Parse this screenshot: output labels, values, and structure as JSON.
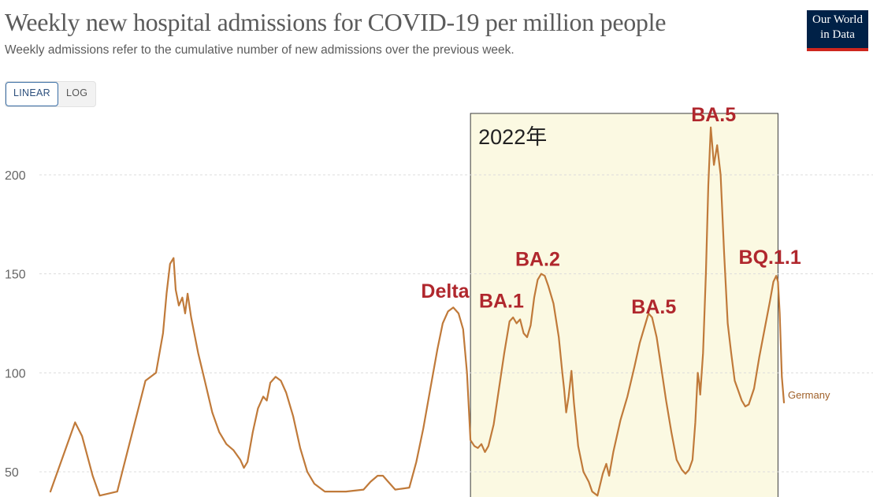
{
  "header": {
    "title": "Weekly new hospital admissions for COVID-19 per million people",
    "subtitle": "Weekly admissions refer to the cumulative number of new admissions over the previous week."
  },
  "logo": {
    "line1": "Our World",
    "line2": "in Data",
    "bg_color": "#002147",
    "accent_color": "#ce261e"
  },
  "controls": {
    "scale_options": [
      "LINEAR",
      "LOG"
    ],
    "selected": "LINEAR"
  },
  "chart_data": {
    "type": "line",
    "title": "Weekly new hospital admissions for COVID-19 per million people",
    "xlabel": "",
    "ylabel": "",
    "y_ticks": [
      50,
      100,
      150,
      200
    ],
    "ylim": [
      40,
      232
    ],
    "grid": "horizontal dashed",
    "line_color": "#c07a3a",
    "series": [
      {
        "name": "Germany",
        "points": [
          [
            0,
            40
          ],
          [
            4,
            60
          ],
          [
            7,
            75
          ],
          [
            9,
            68
          ],
          [
            12,
            48
          ],
          [
            14,
            38
          ],
          [
            19,
            40
          ],
          [
            24,
            75
          ],
          [
            27,
            96
          ],
          [
            30,
            100
          ],
          [
            32,
            120
          ],
          [
            33,
            140
          ],
          [
            34,
            155
          ],
          [
            35,
            158
          ],
          [
            35.6,
            142
          ],
          [
            36.5,
            134
          ],
          [
            37.5,
            138
          ],
          [
            38.3,
            130
          ],
          [
            39,
            140
          ],
          [
            40,
            128
          ],
          [
            42,
            110
          ],
          [
            44,
            95
          ],
          [
            46,
            80
          ],
          [
            48,
            70
          ],
          [
            50,
            64
          ],
          [
            52,
            61
          ],
          [
            54,
            56
          ],
          [
            55,
            52
          ],
          [
            56,
            55
          ],
          [
            57.5,
            70
          ],
          [
            59,
            82
          ],
          [
            60.5,
            88
          ],
          [
            61.5,
            86
          ],
          [
            62.5,
            95
          ],
          [
            64,
            98
          ],
          [
            65.5,
            96
          ],
          [
            67,
            90
          ],
          [
            69,
            78
          ],
          [
            71,
            62
          ],
          [
            73,
            50
          ],
          [
            75,
            44
          ],
          [
            78,
            40
          ],
          [
            84,
            40
          ],
          [
            89,
            41
          ],
          [
            91,
            45
          ],
          [
            93,
            48
          ],
          [
            94.5,
            48
          ],
          [
            96,
            45
          ],
          [
            98,
            41
          ],
          [
            102,
            42
          ],
          [
            104,
            55
          ],
          [
            106,
            72
          ],
          [
            108,
            92
          ],
          [
            110,
            112
          ],
          [
            111.5,
            125
          ],
          [
            113,
            131
          ],
          [
            114.5,
            133
          ],
          [
            116,
            130
          ],
          [
            117.3,
            122
          ],
          [
            118.4,
            100
          ],
          [
            119.4,
            66
          ],
          [
            120.5,
            63
          ],
          [
            121.5,
            62
          ],
          [
            122.5,
            64
          ],
          [
            123.5,
            60
          ],
          [
            124.5,
            63
          ],
          [
            126,
            74
          ],
          [
            127.5,
            92
          ],
          [
            129,
            110
          ],
          [
            130.5,
            126
          ],
          [
            131.5,
            128
          ],
          [
            132.5,
            125
          ],
          [
            133.5,
            127
          ],
          [
            134.5,
            120
          ],
          [
            135.5,
            118
          ],
          [
            136.5,
            124
          ],
          [
            137.5,
            138
          ],
          [
            138.5,
            147
          ],
          [
            139.5,
            150
          ],
          [
            140.5,
            149
          ],
          [
            141.5,
            144
          ],
          [
            143,
            135
          ],
          [
            144.5,
            118
          ],
          [
            145.5,
            100
          ],
          [
            146,
            92
          ],
          [
            146.6,
            80
          ],
          [
            147.3,
            88
          ],
          [
            148.1,
            101
          ],
          [
            148.8,
            85
          ],
          [
            150,
            63
          ],
          [
            151.5,
            50
          ],
          [
            153,
            45
          ],
          [
            154,
            40
          ],
          [
            155.5,
            38
          ],
          [
            157,
            49
          ],
          [
            158,
            54
          ],
          [
            158.8,
            48
          ],
          [
            160,
            60
          ],
          [
            162,
            76
          ],
          [
            164,
            88
          ],
          [
            166,
            103
          ],
          [
            167.5,
            115
          ],
          [
            169,
            124
          ],
          [
            170,
            130
          ],
          [
            171,
            128
          ],
          [
            172.3,
            118
          ],
          [
            173.5,
            104
          ],
          [
            175,
            86
          ],
          [
            176.5,
            70
          ],
          [
            178,
            56
          ],
          [
            179.5,
            51
          ],
          [
            180.5,
            49
          ],
          [
            181.5,
            51
          ],
          [
            182.5,
            56
          ],
          [
            183.3,
            75
          ],
          [
            184,
            100
          ],
          [
            184.4,
            95
          ],
          [
            184.7,
            89
          ],
          [
            185.5,
            110
          ],
          [
            186.3,
            150
          ],
          [
            187,
            195
          ],
          [
            187.7,
            224
          ],
          [
            188.6,
            205
          ],
          [
            189.5,
            215
          ],
          [
            190.5,
            200
          ],
          [
            191.5,
            160
          ],
          [
            192.5,
            125
          ],
          [
            193.5,
            110
          ],
          [
            194.5,
            96
          ],
          [
            195.5,
            91
          ],
          [
            196.5,
            86
          ],
          [
            197.5,
            83
          ],
          [
            198.5,
            84
          ],
          [
            200,
            92
          ],
          [
            201.5,
            108
          ],
          [
            203,
            122
          ],
          [
            204.5,
            136
          ],
          [
            205.5,
            146
          ],
          [
            206.3,
            149
          ],
          [
            206.8,
            146
          ],
          [
            207.3,
            130
          ],
          [
            207.9,
            98
          ],
          [
            208.5,
            85
          ]
        ]
      }
    ],
    "series_label": "Germany",
    "highlight": {
      "label": "2022年",
      "fill": "#fbf9e2",
      "x_start": 119.4,
      "x_end": 206.8
    },
    "annotations": [
      {
        "text": "Delta",
        "x": 112.2,
        "y": 138
      },
      {
        "text": "BA.1",
        "x": 128.2,
        "y": 133
      },
      {
        "text": "BA.2",
        "x": 138.5,
        "y": 154
      },
      {
        "text": "BA.5",
        "x": 171.5,
        "y": 130
      },
      {
        "text": "BA.5",
        "x": 188.5,
        "y": 227
      },
      {
        "text": "BQ.1.1",
        "x": 204.5,
        "y": 155
      }
    ]
  }
}
